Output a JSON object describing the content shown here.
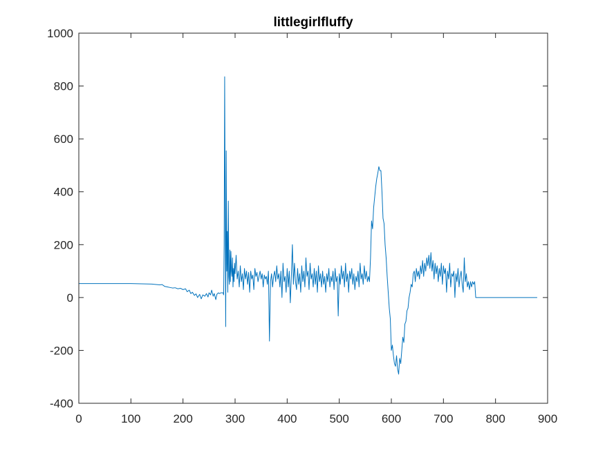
{
  "chart_data": {
    "type": "line",
    "title": "littlegirlfluffy",
    "xlabel": "",
    "ylabel": "",
    "xlim": [
      0,
      900
    ],
    "ylim": [
      -400,
      1000
    ],
    "xticks": [
      0,
      100,
      200,
      300,
      400,
      500,
      600,
      700,
      800,
      900
    ],
    "yticks": [
      -400,
      -200,
      0,
      200,
      400,
      600,
      800,
      1000
    ],
    "xtick_labels": [
      "0",
      "100",
      "200",
      "300",
      "400",
      "500",
      "600",
      "700",
      "800",
      "900"
    ],
    "ytick_labels": [
      "-400",
      "-200",
      "0",
      "200",
      "400",
      "600",
      "800",
      "1000"
    ],
    "grid": false,
    "line_color": "#0072bd",
    "series": [
      {
        "points": [
          [
            0,
            53
          ],
          [
            20,
            53
          ],
          [
            40,
            53
          ],
          [
            60,
            53
          ],
          [
            80,
            53
          ],
          [
            100,
            53
          ],
          [
            120,
            52
          ],
          [
            140,
            51
          ],
          [
            155,
            48
          ],
          [
            160,
            49
          ],
          [
            165,
            42
          ],
          [
            170,
            40
          ],
          [
            175,
            38
          ],
          [
            180,
            36
          ],
          [
            185,
            37
          ],
          [
            190,
            33
          ],
          [
            195,
            35
          ],
          [
            200,
            30
          ],
          [
            205,
            33
          ],
          [
            208,
            22
          ],
          [
            212,
            28
          ],
          [
            215,
            15
          ],
          [
            218,
            20
          ],
          [
            222,
            8
          ],
          [
            225,
            14
          ],
          [
            228,
            0
          ],
          [
            232,
            12
          ],
          [
            235,
            -5
          ],
          [
            238,
            10
          ],
          [
            242,
            5
          ],
          [
            245,
            15
          ],
          [
            248,
            2
          ],
          [
            250,
            18
          ],
          [
            253,
            10
          ],
          [
            255,
            28
          ],
          [
            258,
            5
          ],
          [
            260,
            15
          ],
          [
            263,
            -8
          ],
          [
            265,
            12
          ],
          [
            268,
            18
          ],
          [
            270,
            15
          ],
          [
            273,
            18
          ],
          [
            275,
            18
          ],
          [
            277,
            18
          ],
          [
            278,
            10
          ],
          [
            279,
            200
          ],
          [
            280,
            835
          ],
          [
            281,
            300
          ],
          [
            282,
            -110
          ],
          [
            283,
            555
          ],
          [
            284,
            100
          ],
          [
            285,
            250
          ],
          [
            286,
            20
          ],
          [
            287,
            365
          ],
          [
            288,
            80
          ],
          [
            289,
            50
          ],
          [
            290,
            180
          ],
          [
            291,
            60
          ],
          [
            292,
            175
          ],
          [
            293,
            100
          ],
          [
            294,
            80
          ],
          [
            295,
            150
          ],
          [
            296,
            40
          ],
          [
            297,
            110
          ],
          [
            298,
            60
          ],
          [
            299,
            130
          ],
          [
            300,
            90
          ],
          [
            302,
            160
          ],
          [
            304,
            70
          ],
          [
            306,
            100
          ],
          [
            308,
            40
          ],
          [
            310,
            120
          ],
          [
            312,
            60
          ],
          [
            314,
            90
          ],
          [
            316,
            30
          ],
          [
            318,
            110
          ],
          [
            320,
            70
          ],
          [
            322,
            100
          ],
          [
            324,
            50
          ],
          [
            326,
            95
          ],
          [
            328,
            20
          ],
          [
            330,
            100
          ],
          [
            332,
            70
          ],
          [
            334,
            85
          ],
          [
            336,
            30
          ],
          [
            338,
            110
          ],
          [
            340,
            80
          ],
          [
            342,
            95
          ],
          [
            344,
            60
          ],
          [
            346,
            80
          ],
          [
            348,
            100
          ],
          [
            350,
            70
          ],
          [
            352,
            90
          ],
          [
            354,
            40
          ],
          [
            356,
            85
          ],
          [
            358,
            70
          ],
          [
            360,
            80
          ],
          [
            362,
            50
          ],
          [
            364,
            100
          ],
          [
            366,
            -165
          ],
          [
            368,
            60
          ],
          [
            370,
            90
          ],
          [
            372,
            40
          ],
          [
            374,
            80
          ],
          [
            376,
            100
          ],
          [
            378,
            60
          ],
          [
            380,
            120
          ],
          [
            382,
            70
          ],
          [
            384,
            90
          ],
          [
            386,
            40
          ],
          [
            388,
            100
          ],
          [
            390,
            0
          ],
          [
            392,
            130
          ],
          [
            394,
            60
          ],
          [
            396,
            80
          ],
          [
            398,
            20
          ],
          [
            400,
            110
          ],
          [
            402,
            40
          ],
          [
            404,
            100
          ],
          [
            406,
            -20
          ],
          [
            408,
            80
          ],
          [
            410,
            200
          ],
          [
            412,
            50
          ],
          [
            414,
            130
          ],
          [
            416,
            60
          ],
          [
            418,
            30
          ],
          [
            420,
            110
          ],
          [
            422,
            50
          ],
          [
            424,
            90
          ],
          [
            426,
            20
          ],
          [
            428,
            120
          ],
          [
            430,
            60
          ],
          [
            432,
            100
          ],
          [
            434,
            40
          ],
          [
            436,
            150
          ],
          [
            438,
            80
          ],
          [
            440,
            100
          ],
          [
            442,
            30
          ],
          [
            444,
            130
          ],
          [
            446,
            70
          ],
          [
            448,
            90
          ],
          [
            450,
            40
          ],
          [
            452,
            110
          ],
          [
            454,
            50
          ],
          [
            456,
            100
          ],
          [
            458,
            20
          ],
          [
            460,
            120
          ],
          [
            462,
            60
          ],
          [
            464,
            90
          ],
          [
            466,
            40
          ],
          [
            468,
            100
          ],
          [
            470,
            50
          ],
          [
            472,
            80
          ],
          [
            474,
            20
          ],
          [
            476,
            90
          ],
          [
            478,
            60
          ],
          [
            480,
            110
          ],
          [
            482,
            40
          ],
          [
            484,
            80
          ],
          [
            486,
            60
          ],
          [
            488,
            100
          ],
          [
            490,
            30
          ],
          [
            492,
            110
          ],
          [
            494,
            60
          ],
          [
            496,
            80
          ],
          [
            498,
            -70
          ],
          [
            500,
            90
          ],
          [
            502,
            50
          ],
          [
            504,
            120
          ],
          [
            506,
            70
          ],
          [
            508,
            100
          ],
          [
            510,
            40
          ],
          [
            512,
            130
          ],
          [
            514,
            60
          ],
          [
            516,
            90
          ],
          [
            518,
            20
          ],
          [
            520,
            100
          ],
          [
            522,
            70
          ],
          [
            524,
            110
          ],
          [
            526,
            50
          ],
          [
            528,
            90
          ],
          [
            530,
            30
          ],
          [
            532,
            80
          ],
          [
            534,
            60
          ],
          [
            536,
            100
          ],
          [
            538,
            40
          ],
          [
            540,
            130
          ],
          [
            542,
            70
          ],
          [
            544,
            90
          ],
          [
            546,
            50
          ],
          [
            548,
            120
          ],
          [
            550,
            70
          ],
          [
            552,
            100
          ],
          [
            554,
            60
          ],
          [
            556,
            80
          ],
          [
            558,
            60
          ],
          [
            560,
            150
          ],
          [
            562,
            290
          ],
          [
            564,
            260
          ],
          [
            566,
            340
          ],
          [
            568,
            380
          ],
          [
            570,
            420
          ],
          [
            572,
            450
          ],
          [
            574,
            470
          ],
          [
            576,
            495
          ],
          [
            578,
            480
          ],
          [
            580,
            480
          ],
          [
            582,
            400
          ],
          [
            584,
            300
          ],
          [
            586,
            280
          ],
          [
            588,
            200
          ],
          [
            590,
            150
          ],
          [
            592,
            80
          ],
          [
            594,
            20
          ],
          [
            596,
            -40
          ],
          [
            598,
            -80
          ],
          [
            600,
            -200
          ],
          [
            602,
            -180
          ],
          [
            604,
            -220
          ],
          [
            606,
            -250
          ],
          [
            608,
            -260
          ],
          [
            610,
            -220
          ],
          [
            612,
            -270
          ],
          [
            614,
            -290
          ],
          [
            616,
            -230
          ],
          [
            618,
            -250
          ],
          [
            620,
            -200
          ],
          [
            622,
            -150
          ],
          [
            624,
            -170
          ],
          [
            626,
            -100
          ],
          [
            628,
            -90
          ],
          [
            630,
            -50
          ],
          [
            632,
            -40
          ],
          [
            634,
            0
          ],
          [
            636,
            20
          ],
          [
            638,
            50
          ],
          [
            640,
            40
          ],
          [
            642,
            90
          ],
          [
            644,
            100
          ],
          [
            646,
            60
          ],
          [
            648,
            110
          ],
          [
            650,
            80
          ],
          [
            652,
            100
          ],
          [
            654,
            70
          ],
          [
            656,
            120
          ],
          [
            658,
            90
          ],
          [
            660,
            140
          ],
          [
            662,
            80
          ],
          [
            664,
            130
          ],
          [
            666,
            100
          ],
          [
            668,
            150
          ],
          [
            670,
            120
          ],
          [
            672,
            160
          ],
          [
            674,
            110
          ],
          [
            676,
            170
          ],
          [
            678,
            100
          ],
          [
            680,
            140
          ],
          [
            682,
            70
          ],
          [
            684,
            130
          ],
          [
            686,
            90
          ],
          [
            688,
            120
          ],
          [
            690,
            60
          ],
          [
            692,
            110
          ],
          [
            694,
            80
          ],
          [
            696,
            130
          ],
          [
            698,
            50
          ],
          [
            700,
            120
          ],
          [
            702,
            90
          ],
          [
            704,
            110
          ],
          [
            706,
            20
          ],
          [
            708,
            100
          ],
          [
            710,
            70
          ],
          [
            712,
            130
          ],
          [
            714,
            40
          ],
          [
            716,
            90
          ],
          [
            718,
            80
          ],
          [
            720,
            100
          ],
          [
            722,
            0
          ],
          [
            724,
            90
          ],
          [
            726,
            60
          ],
          [
            728,
            110
          ],
          [
            730,
            40
          ],
          [
            732,
            80
          ],
          [
            734,
            100
          ],
          [
            736,
            50
          ],
          [
            738,
            20
          ],
          [
            740,
            150
          ],
          [
            742,
            60
          ],
          [
            744,
            90
          ],
          [
            746,
            40
          ],
          [
            748,
            60
          ],
          [
            750,
            30
          ],
          [
            752,
            60
          ],
          [
            754,
            40
          ],
          [
            756,
            60
          ],
          [
            758,
            50
          ],
          [
            760,
            60
          ],
          [
            762,
            0
          ],
          [
            770,
            0
          ],
          [
            800,
            0
          ],
          [
            830,
            0
          ],
          [
            860,
            0
          ],
          [
            880,
            0
          ]
        ]
      }
    ]
  }
}
